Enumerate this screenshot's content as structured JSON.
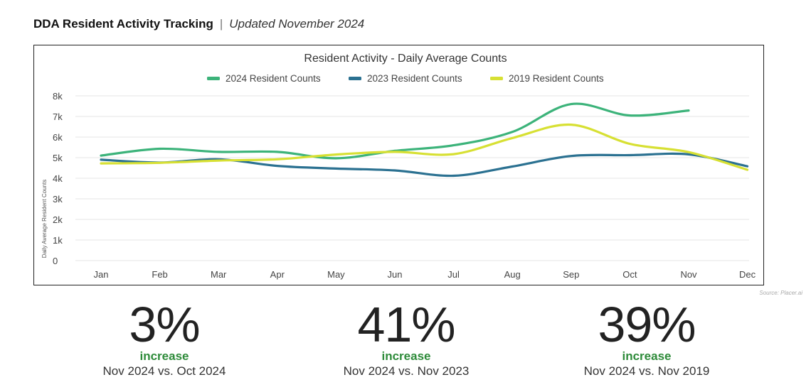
{
  "header": {
    "title": "DDA Resident Activity Tracking",
    "separator": "|",
    "subtitle": "Updated November 2024"
  },
  "source": "Source: Placer.ai",
  "stats": [
    {
      "value": "3%",
      "label": "increase",
      "comparison": "Nov 2024 vs. Oct 2024"
    },
    {
      "value": "41%",
      "label": "increase",
      "comparison": "Nov 2024 vs. Nov 2023"
    },
    {
      "value": "39%",
      "label": "increase",
      "comparison": "Nov 2024 vs. Nov 2019"
    }
  ],
  "colors": {
    "accent_green": "#2e8b3a"
  },
  "chart_data": {
    "type": "line",
    "title": "Resident Activity - Daily Average Counts",
    "xlabel": "",
    "ylabel": "Daily Average Resident Counts",
    "categories": [
      "Jan",
      "Feb",
      "Mar",
      "Apr",
      "May",
      "Jun",
      "Jul",
      "Aug",
      "Sep",
      "Oct",
      "Nov",
      "Dec"
    ],
    "y_ticks": [
      {
        "value": 0,
        "label": "0"
      },
      {
        "value": 1000,
        "label": "1k"
      },
      {
        "value": 2000,
        "label": "2k"
      },
      {
        "value": 3000,
        "label": "3k"
      },
      {
        "value": 4000,
        "label": "4k"
      },
      {
        "value": 5000,
        "label": "5k"
      },
      {
        "value": 6000,
        "label": "6k"
      },
      {
        "value": 7000,
        "label": "7k"
      },
      {
        "value": 8000,
        "label": "8k"
      }
    ],
    "ylim": [
      0,
      8000
    ],
    "grid": true,
    "legend_position": "top-center",
    "series": [
      {
        "name": "2024 Resident Counts",
        "color": "#3cb37a",
        "values": [
          5100,
          5430,
          5280,
          5280,
          4970,
          5330,
          5600,
          6250,
          7600,
          7050,
          7290,
          null
        ]
      },
      {
        "name": "2023 Resident Counts",
        "color": "#2b7191",
        "values": [
          4900,
          4760,
          4920,
          4600,
          4470,
          4380,
          4120,
          4570,
          5080,
          5120,
          5160,
          4580
        ]
      },
      {
        "name": "2019 Resident Counts",
        "color": "#d7e033",
        "values": [
          4720,
          4750,
          4860,
          4920,
          5150,
          5280,
          5170,
          5950,
          6600,
          5670,
          5270,
          4410
        ]
      }
    ]
  }
}
